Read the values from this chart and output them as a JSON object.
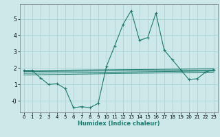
{
  "xlabel": "Humidex (Indice chaleur)",
  "ylabel": "",
  "background_color": "#cce8e8",
  "line_color": "#1a7a6e",
  "grid_color": "#aad4d4",
  "xlim": [
    -0.5,
    23.5
  ],
  "ylim": [
    -0.7,
    5.9
  ],
  "xticks": [
    0,
    1,
    2,
    3,
    4,
    5,
    6,
    7,
    8,
    9,
    10,
    11,
    12,
    13,
    14,
    15,
    16,
    17,
    18,
    19,
    20,
    21,
    22,
    23
  ],
  "yticks": [
    5,
    4,
    3,
    2,
    1,
    0
  ],
  "ytick_labels": [
    "5",
    "4",
    "3",
    "2",
    "1",
    "-0"
  ],
  "main_series_x": [
    0,
    1,
    2,
    3,
    4,
    5,
    6,
    7,
    8,
    9,
    10,
    11,
    12,
    13,
    14,
    15,
    16,
    17,
    18,
    19,
    20,
    21,
    22,
    23
  ],
  "main_series_y": [
    1.85,
    1.85,
    1.4,
    1.0,
    1.05,
    0.75,
    -0.42,
    -0.35,
    -0.42,
    -0.15,
    2.1,
    3.35,
    4.65,
    5.5,
    3.7,
    3.85,
    5.35,
    3.1,
    2.5,
    1.9,
    1.3,
    1.35,
    1.75,
    1.9
  ],
  "lines": [
    {
      "x": [
        0,
        23
      ],
      "y": [
        1.85,
        1.95
      ]
    },
    {
      "x": [
        0,
        23
      ],
      "y": [
        1.78,
        1.88
      ]
    },
    {
      "x": [
        0,
        23
      ],
      "y": [
        1.68,
        1.82
      ]
    },
    {
      "x": [
        0,
        23
      ],
      "y": [
        1.58,
        1.75
      ]
    }
  ]
}
